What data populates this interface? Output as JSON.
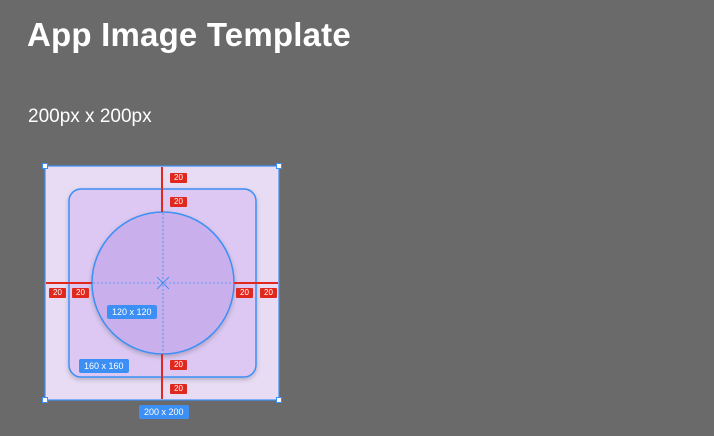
{
  "page": {
    "title": "App Image Template",
    "subtitle": "200px x 200px"
  },
  "template": {
    "outer": {
      "label": "200 x 200"
    },
    "inner": {
      "label": "160 x 160"
    },
    "circle": {
      "label": "120 x 120"
    },
    "spacing": {
      "top_outer": "20",
      "top_inner": "20",
      "left_outer": "20",
      "left_inner": "20",
      "right_inner": "20",
      "right_outer": "20",
      "bottom_inner": "20",
      "bottom_outer": "20"
    }
  },
  "colors": {
    "background": "#6a6a6a",
    "outer_fill": "#e8dcf5",
    "inner_fill": "#dcc8f2",
    "circle_fill": "#c9b0ec",
    "selection_blue": "#3b8ff5",
    "guide_red": "#e0281e"
  }
}
